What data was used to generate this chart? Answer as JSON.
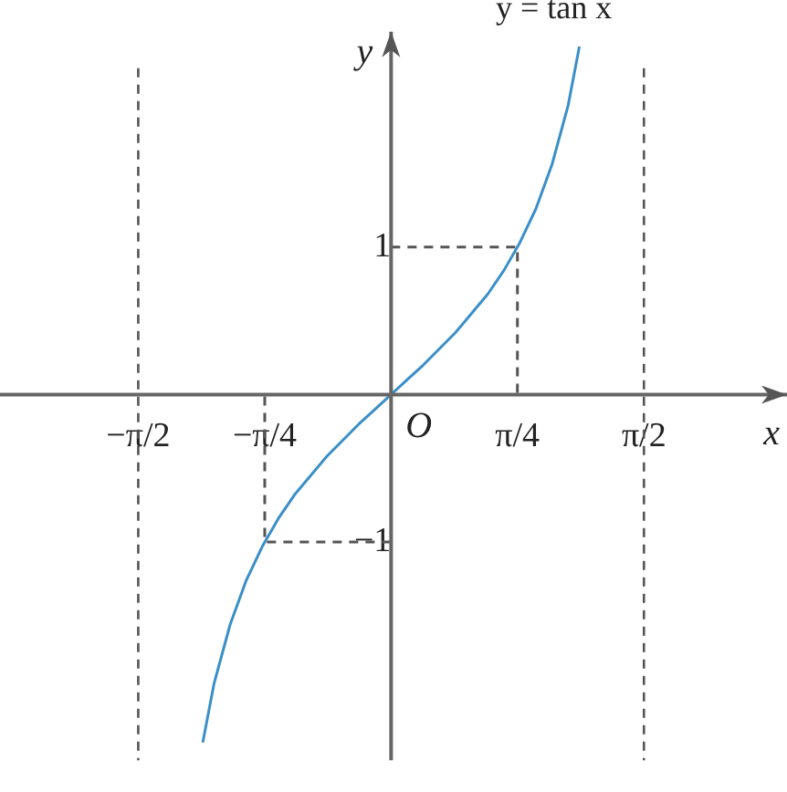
{
  "chart_data": {
    "type": "line",
    "xlabel": "x",
    "ylabel": "y",
    "xlim": [
      -2.43,
      2.46
    ],
    "ylim": [
      -2.48,
      2.46
    ],
    "xticks": [
      {
        "value": -1.571,
        "label": "−π/2"
      },
      {
        "value": -0.785,
        "label": "−π/4"
      },
      {
        "value": 0.785,
        "label": "π/4"
      },
      {
        "value": 1.571,
        "label": "π/2"
      }
    ],
    "yticks": [
      {
        "value": 1,
        "label": "1"
      },
      {
        "value": -1,
        "label": "−1"
      }
    ],
    "grid": false,
    "legend": false,
    "marker": "none",
    "series": [
      {
        "name": "y = tan x",
        "color": "#3a8fc8",
        "line_style": "solid",
        "x": [
          -1.17,
          -1.1,
          -1.0,
          -0.9,
          -0.8,
          -0.7,
          -0.6,
          -0.5,
          -0.4,
          -0.3,
          -0.2,
          -0.1,
          0,
          0.1,
          0.2,
          0.3,
          0.4,
          0.5,
          0.6,
          0.7,
          0.8,
          0.9,
          1.0,
          1.1,
          1.17
        ],
        "values": [
          -2.36,
          -1.96,
          -1.56,
          -1.26,
          -1.03,
          -0.84,
          -0.68,
          -0.55,
          -0.42,
          -0.31,
          -0.2,
          -0.1,
          0,
          0.1,
          0.2,
          0.31,
          0.42,
          0.55,
          0.68,
          0.84,
          1.03,
          1.26,
          1.56,
          1.96,
          2.36
        ]
      },
      {
        "color": "#555555",
        "line_style": "dashed",
        "x": [
          0,
          0.785,
          0.785
        ],
        "values": [
          1,
          1,
          0
        ]
      },
      {
        "color": "#555555",
        "line_style": "dashed",
        "x": [
          0,
          -0.785,
          -0.785
        ],
        "values": [
          -1,
          -1,
          0
        ]
      }
    ],
    "ref_lines": [
      {
        "axis": "x",
        "value": -1.571,
        "color": "#555555",
        "line_style": "dashed"
      },
      {
        "axis": "x",
        "value": 1.571,
        "color": "#555555",
        "line_style": "dashed"
      }
    ],
    "annotations": [
      {
        "text": "O",
        "x": 0,
        "y": 0
      }
    ]
  }
}
